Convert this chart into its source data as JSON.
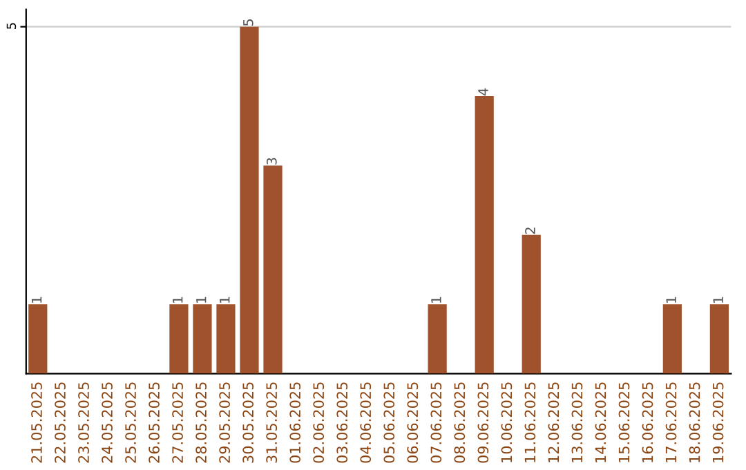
{
  "chart_data": {
    "type": "bar",
    "categories": [
      "21.05.2025",
      "22.05.2025",
      "23.05.2025",
      "24.05.2025",
      "25.05.2025",
      "26.05.2025",
      "27.05.2025",
      "28.05.2025",
      "29.05.2025",
      "30.05.2025",
      "31.05.2025",
      "01.06.2025",
      "02.06.2025",
      "03.06.2025",
      "04.06.2025",
      "05.06.2025",
      "06.06.2025",
      "07.06.2025",
      "08.06.2025",
      "09.06.2025",
      "10.06.2025",
      "11.06.2025",
      "12.06.2025",
      "13.06.2025",
      "14.06.2025",
      "15.06.2025",
      "16.06.2025",
      "17.06.2025",
      "18.06.2025",
      "19.06.2025"
    ],
    "values": [
      1,
      0,
      0,
      0,
      0,
      0,
      1,
      1,
      1,
      5,
      3,
      0,
      0,
      0,
      0,
      0,
      0,
      1,
      0,
      4,
      0,
      2,
      0,
      0,
      0,
      0,
      0,
      1,
      0,
      1
    ],
    "value_labels": [
      "1",
      null,
      null,
      null,
      null,
      null,
      "1",
      "1",
      "1",
      "5",
      "3",
      null,
      null,
      null,
      null,
      null,
      null,
      "1",
      null,
      "4",
      null,
      "2",
      null,
      null,
      null,
      null,
      null,
      "1",
      null,
      "1"
    ],
    "color": "#a0522d",
    "ylim": [
      0,
      5.25
    ],
    "yticks": [
      5
    ],
    "grid": "y"
  }
}
